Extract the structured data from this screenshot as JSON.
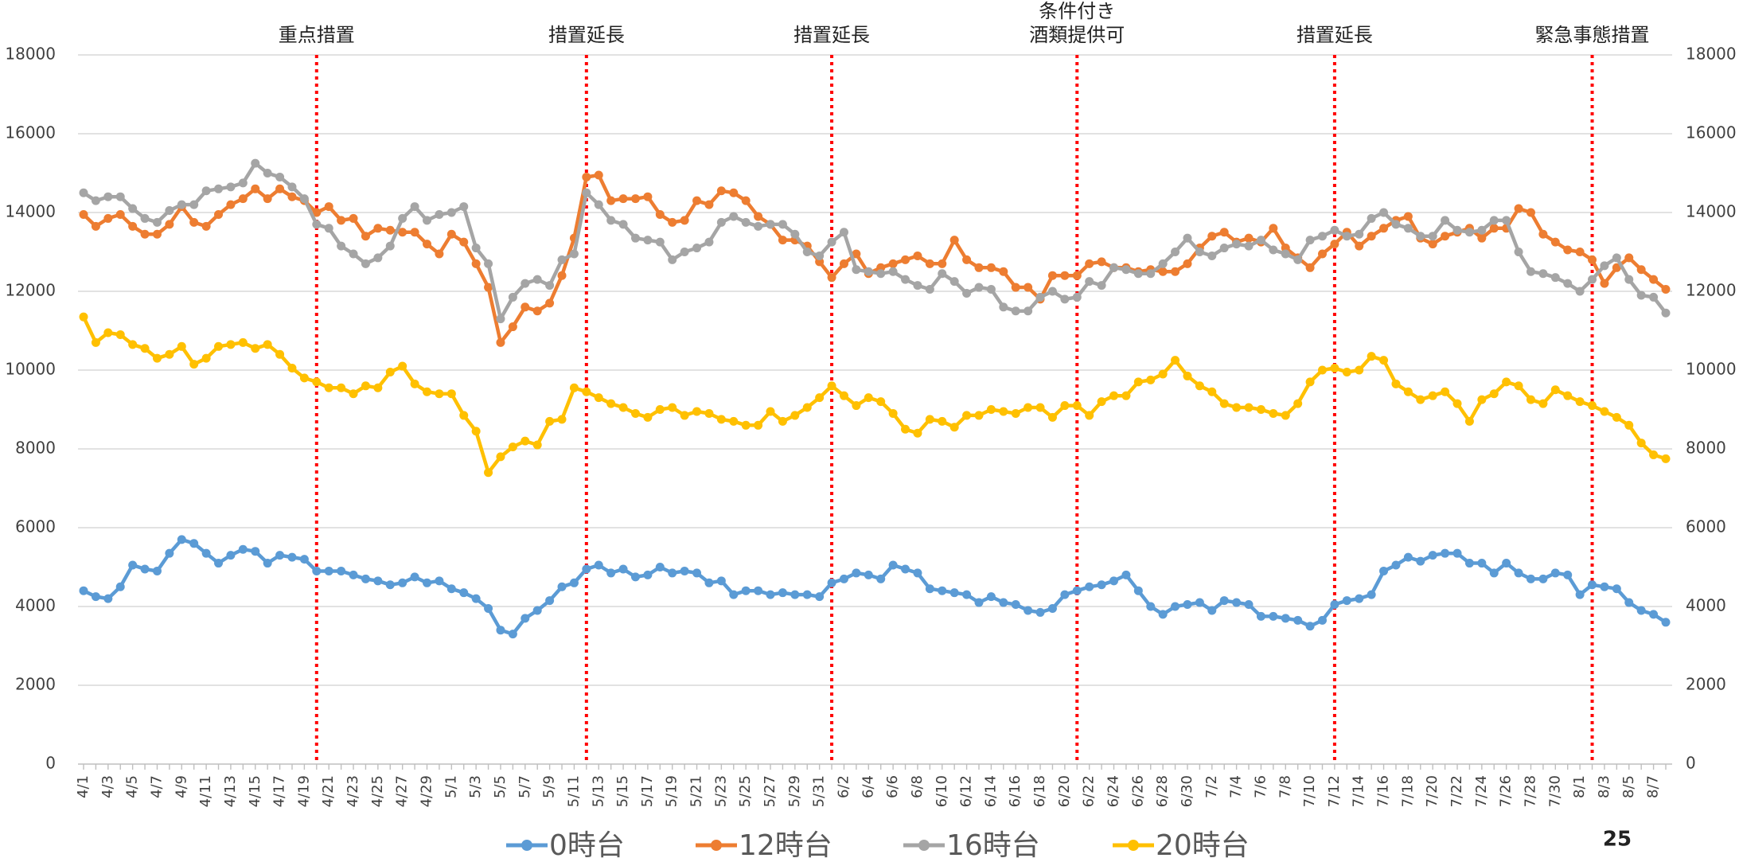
{
  "chart_data": {
    "type": "line",
    "categories": [
      "4/1",
      null,
      "4/3",
      null,
      "4/5",
      null,
      "4/7",
      null,
      "4/9",
      null,
      "4/11",
      null,
      "4/13",
      null,
      "4/15",
      null,
      "4/17",
      null,
      "4/19",
      null,
      "4/21",
      null,
      "4/23",
      null,
      "4/25",
      null,
      "4/27",
      null,
      "4/29",
      null,
      "5/1",
      null,
      "5/3",
      null,
      "5/5",
      null,
      "5/7",
      null,
      "5/9",
      null,
      "5/11",
      null,
      "5/13",
      null,
      "5/15",
      null,
      "5/17",
      null,
      "5/19",
      null,
      "5/21",
      null,
      "5/23",
      null,
      "5/25",
      null,
      "5/27",
      null,
      "5/29",
      null,
      "5/31",
      null,
      "6/2",
      null,
      "6/4",
      null,
      "6/6",
      null,
      "6/8",
      null,
      "6/10",
      null,
      "6/12",
      null,
      "6/14",
      null,
      "6/16",
      null,
      "6/18",
      null,
      "6/20",
      null,
      "6/22",
      null,
      "6/24",
      null,
      "6/26",
      null,
      "6/28",
      null,
      "6/30",
      null,
      "7/2",
      null,
      "7/4",
      null,
      "7/6",
      null,
      "7/8",
      null,
      "7/10",
      null,
      "7/12",
      null,
      "7/14",
      null,
      "7/16",
      null,
      "7/18",
      null,
      "7/20",
      null,
      "7/22",
      null,
      "7/24",
      null,
      "7/26",
      null,
      "7/28",
      null,
      "7/30",
      null,
      "8/1",
      null,
      "8/3",
      null,
      "8/5",
      null,
      "8/7",
      null
    ],
    "series": [
      {
        "name": "0時台",
        "color": "#5b9bd5",
        "values": [
          4400,
          4250,
          4200,
          4500,
          5050,
          4950,
          4900,
          5350,
          5700,
          5600,
          5350,
          5100,
          5300,
          5450,
          5400,
          5100,
          5300,
          5250,
          5200,
          4900,
          4900,
          4900,
          4800,
          4700,
          4650,
          4550,
          4600,
          4750,
          4600,
          4650,
          4450,
          4350,
          4200,
          3950,
          3400,
          3300,
          3700,
          3900,
          4150,
          4500,
          4600,
          4950,
          5050,
          4850,
          4950,
          4750,
          4800,
          5000,
          4850,
          4900,
          4850,
          4600,
          4650,
          4300,
          4400,
          4400,
          4300,
          4350,
          4300,
          4300,
          4250,
          4600,
          4700,
          4850,
          4800,
          4700,
          5050,
          4950,
          4850,
          4450,
          4400,
          4350,
          4300,
          4100,
          4250,
          4100,
          4050,
          3900,
          3850,
          3950,
          4300,
          4400,
          4500,
          4550,
          4650,
          4800,
          4400,
          4000,
          3800,
          4000,
          4050,
          4100,
          3900,
          4150,
          4100,
          4050,
          3750,
          3750,
          3700,
          3650,
          3500,
          3650,
          4050,
          4150,
          4200,
          4300,
          4900,
          5050,
          5250,
          5150,
          5300,
          5350,
          5350,
          5100,
          5100,
          4850,
          5100,
          4850,
          4700,
          4700,
          4850,
          4800,
          4300,
          4550,
          4500,
          4450,
          4100,
          3900,
          3800,
          3600
        ]
      },
      {
        "name": "12時台",
        "color": "#ed7d31",
        "values": [
          13950,
          13650,
          13850,
          13950,
          13650,
          13450,
          13450,
          13700,
          14150,
          13750,
          13650,
          13950,
          14200,
          14350,
          14600,
          14350,
          14600,
          14400,
          14300,
          14000,
          14150,
          13800,
          13850,
          13400,
          13600,
          13550,
          13500,
          13500,
          13200,
          12950,
          13450,
          13250,
          12700,
          12100,
          10700,
          11100,
          11600,
          11500,
          11700,
          12400,
          13350,
          14900,
          14950,
          14300,
          14350,
          14350,
          14400,
          13950,
          13750,
          13800,
          14300,
          14200,
          14550,
          14500,
          14300,
          13900,
          13700,
          13300,
          13300,
          13150,
          12750,
          12350,
          12700,
          12950,
          12450,
          12600,
          12700,
          12800,
          12900,
          12700,
          12700,
          13300,
          12800,
          12600,
          12600,
          12500,
          12100,
          12100,
          11800,
          12400,
          12400,
          12400,
          12700,
          12750,
          12600,
          12600,
          12500,
          12550,
          12500,
          12500,
          12700,
          13100,
          13400,
          13500,
          13250,
          13350,
          13250,
          13600,
          13100,
          12850,
          12600,
          12950,
          13200,
          13500,
          13150,
          13400,
          13600,
          13800,
          13900,
          13350,
          13200,
          13400,
          13500,
          13600,
          13350,
          13600,
          13600,
          14100,
          14000,
          13450,
          13250,
          13050,
          13000,
          12800,
          12200,
          12600,
          12850,
          12550,
          12300,
          12050
        ]
      },
      {
        "name": "16時台",
        "color": "#a5a5a5",
        "values": [
          14500,
          14300,
          14400,
          14400,
          14100,
          13850,
          13750,
          14050,
          14200,
          14200,
          14550,
          14600,
          14650,
          14750,
          15250,
          15000,
          14900,
          14650,
          14350,
          13700,
          13600,
          13150,
          12950,
          12700,
          12850,
          13150,
          13850,
          14150,
          13800,
          13950,
          14000,
          14150,
          13100,
          12700,
          11300,
          11850,
          12200,
          12300,
          12150,
          12800,
          12950,
          14500,
          14200,
          13800,
          13700,
          13350,
          13300,
          13250,
          12800,
          13000,
          13100,
          13250,
          13750,
          13900,
          13750,
          13650,
          13700,
          13700,
          13450,
          13000,
          12900,
          13250,
          13500,
          12550,
          12500,
          12450,
          12500,
          12300,
          12150,
          12050,
          12450,
          12250,
          11950,
          12100,
          12050,
          11600,
          11500,
          11500,
          11850,
          12000,
          11800,
          11850,
          12250,
          12150,
          12600,
          12550,
          12450,
          12450,
          12700,
          13000,
          13350,
          13000,
          12900,
          13100,
          13200,
          13150,
          13300,
          13050,
          12950,
          12800,
          13300,
          13400,
          13550,
          13400,
          13450,
          13850,
          14000,
          13700,
          13600,
          13400,
          13400,
          13800,
          13550,
          13500,
          13550,
          13800,
          13800,
          13000,
          12500,
          12450,
          12350,
          12200,
          12000,
          12300,
          12650,
          12850,
          12300,
          11900,
          11850,
          11450
        ]
      },
      {
        "name": "20時台",
        "color": "#ffc000",
        "values": [
          11350,
          10700,
          10950,
          10900,
          10650,
          10550,
          10300,
          10400,
          10600,
          10150,
          10300,
          10600,
          10650,
          10700,
          10550,
          10650,
          10400,
          10050,
          9800,
          9700,
          9550,
          9550,
          9400,
          9600,
          9550,
          9950,
          10100,
          9650,
          9450,
          9400,
          9400,
          8850,
          8450,
          7400,
          7800,
          8050,
          8200,
          8100,
          8700,
          8750,
          9550,
          9450,
          9300,
          9150,
          9050,
          8900,
          8800,
          9000,
          9050,
          8850,
          8950,
          8900,
          8750,
          8700,
          8600,
          8600,
          8950,
          8700,
          8850,
          9050,
          9300,
          9600,
          9350,
          9100,
          9300,
          9200,
          8900,
          8500,
          8400,
          8750,
          8700,
          8550,
          8850,
          8850,
          9000,
          8950,
          8900,
          9050,
          9050,
          8800,
          9100,
          9100,
          8850,
          9200,
          9350,
          9350,
          9700,
          9750,
          9900,
          10250,
          9850,
          9600,
          9450,
          9150,
          9050,
          9050,
          9000,
          8900,
          8850,
          9150,
          9700,
          10000,
          10050,
          9950,
          10000,
          10350,
          10250,
          9650,
          9450,
          9250,
          9350,
          9450,
          9150,
          8700,
          9250,
          9400,
          9700,
          9600,
          9250,
          9150,
          9500,
          9350,
          9200,
          9100,
          8950,
          8800,
          8600,
          8150,
          7850,
          7750
        ]
      }
    ],
    "ylim": [
      0,
      18000
    ],
    "yticks": [
      0,
      2000,
      4000,
      6000,
      8000,
      10000,
      12000,
      14000,
      16000,
      18000
    ],
    "y2lim": [
      0,
      18000
    ],
    "y2ticks": [
      0,
      2000,
      4000,
      6000,
      8000,
      10000,
      12000,
      14000,
      16000,
      18000
    ],
    "grid": true,
    "legend": "bottom",
    "annotations": [
      {
        "index": 19,
        "lines": [
          "重点措置"
        ],
        "color": "#ff0000"
      },
      {
        "index": 41,
        "lines": [
          "措置延長"
        ],
        "color": "#ff0000"
      },
      {
        "index": 61,
        "lines": [
          "措置延長"
        ],
        "color": "#ff0000"
      },
      {
        "index": 81,
        "lines": [
          "条件付き",
          "酒類提供可"
        ],
        "color": "#ff0000"
      },
      {
        "index": 102,
        "lines": [
          "措置延長"
        ],
        "color": "#ff0000"
      },
      {
        "index": 123,
        "lines": [
          "緊急事態措置"
        ],
        "color": "#ff0000"
      }
    ],
    "page_number": "25"
  }
}
